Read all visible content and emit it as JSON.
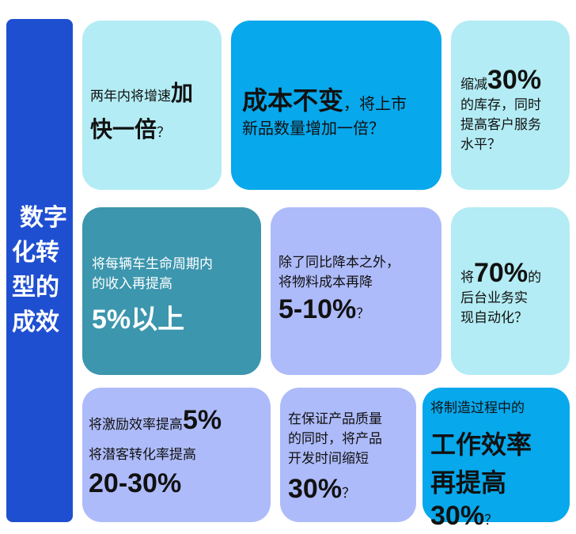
{
  "sidebar": {
    "title_line1": "数字",
    "title_line2": "化转",
    "title_line3": "型的",
    "title_line4": "成效"
  },
  "cards": {
    "c1": {
      "a": "两年内将增速",
      "b": "加",
      "c": "快一倍",
      "d": "？"
    },
    "c2": {
      "a": "成本不变",
      "b": "，将上市",
      "c": "新品数量增加一倍？"
    },
    "c3": {
      "a": "缩减",
      "b": "30%",
      "c": "的库存，同时",
      "d": "提高客户服务",
      "e": "水平？"
    },
    "c4": {
      "a": "将每辆车生命周期内",
      "b": "的收入再提高",
      "c": "5%以上"
    },
    "c5": {
      "a": "除了同比降本之外，",
      "b": "将物料成本再降",
      "c": "5-10%",
      "d": "？"
    },
    "c6": {
      "a": "将",
      "b": "70%",
      "c": "的",
      "d": "后台业务实",
      "e": "现自动化？"
    },
    "c7": {
      "a": "将激励效率提高",
      "b": "5%",
      "c": "将潜客转化率提高",
      "d": "20-30%"
    },
    "c8": {
      "a": "在保证产品质量",
      "b": "的同时，将产品",
      "c": "开发时间缩短",
      "d": "30%",
      "e": "？"
    },
    "c9": {
      "a": "将制造过程中的",
      "b": "工作效率",
      "c": "再提高",
      "d": "30%",
      "e": "？"
    }
  },
  "colors": {
    "sidebar": "#1f4fd1",
    "light_cyan": "#b3ecf4",
    "bright_blue": "#07a8ec",
    "teal": "#3c96ad",
    "lavender": "#aebbfa"
  }
}
